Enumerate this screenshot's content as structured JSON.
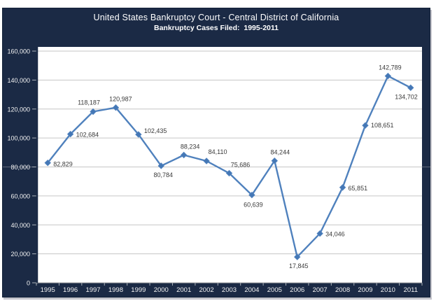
{
  "header": {
    "title": "United States Bankruptcy Court - Central District of California",
    "subtitle": "Bankruptcy Cases Filed:  1995-2011"
  },
  "chart_data": {
    "type": "line",
    "title": "United States Bankruptcy Court - Central District of California",
    "subtitle": "Bankruptcy Cases Filed:  1995-2011",
    "categories": [
      "1995",
      "1996",
      "1997",
      "1998",
      "1999",
      "2000",
      "2001",
      "2002",
      "2003",
      "2004",
      "2005",
      "2006",
      "2007",
      "2008",
      "2009",
      "2010",
      "2011"
    ],
    "values": [
      82829,
      102684,
      118187,
      120987,
      102435,
      80784,
      88234,
      84110,
      75686,
      60639,
      84244,
      17845,
      34046,
      65851,
      108651,
      142789,
      134702
    ],
    "data_labels": [
      "82,829",
      "102,684",
      "118,187",
      "120,987",
      "102,435",
      "80,784",
      "88,234",
      "84,110",
      "75,686",
      "60,639",
      "84,244",
      "17,845",
      "34,046",
      "65,851",
      "108,651",
      "142,789",
      "134,702"
    ],
    "label_offsets": [
      [
        8,
        5,
        "start"
      ],
      [
        8,
        4,
        "start"
      ],
      [
        -6,
        -10,
        "middle"
      ],
      [
        7,
        -9,
        "middle"
      ],
      [
        8,
        -2,
        "start"
      ],
      [
        3,
        16,
        "middle"
      ],
      [
        9,
        -9,
        "middle"
      ],
      [
        16,
        -10,
        "middle"
      ],
      [
        16,
        -9,
        "middle"
      ],
      [
        2,
        17,
        "middle"
      ],
      [
        8,
        -9,
        "middle"
      ],
      [
        2,
        16,
        "middle"
      ],
      [
        8,
        4,
        "start"
      ],
      [
        8,
        4,
        "start"
      ],
      [
        8,
        3,
        "start"
      ],
      [
        3,
        -9,
        "middle"
      ],
      [
        10,
        16,
        "end"
      ]
    ],
    "xlabel": "",
    "ylabel": "",
    "ylim": [
      0,
      160000
    ],
    "ytick_step": 20000,
    "ytick_values": [
      0,
      20000,
      40000,
      60000,
      80000,
      100000,
      120000,
      140000,
      160000
    ],
    "ytick_labels": [
      "0",
      "20,000",
      "40,000",
      "60,000",
      "80,000",
      "100,000",
      "120,000",
      "140,000",
      "160,000"
    ],
    "grid": true,
    "legend": "none",
    "marker": "diamond",
    "colors": {
      "panel_bg": "#1b2a45",
      "plot_bg": "#ffffff",
      "gridline": "#c6c6c6",
      "series_line": "#4f81bd",
      "marker_fill": "#4477b5",
      "data_label": "#3a3a3a",
      "axis_label": "#f2f2f2",
      "tick": "#aab0b8",
      "x_axis_line": "#a6a6a6",
      "y_axis_line": "#1b2a45"
    }
  }
}
